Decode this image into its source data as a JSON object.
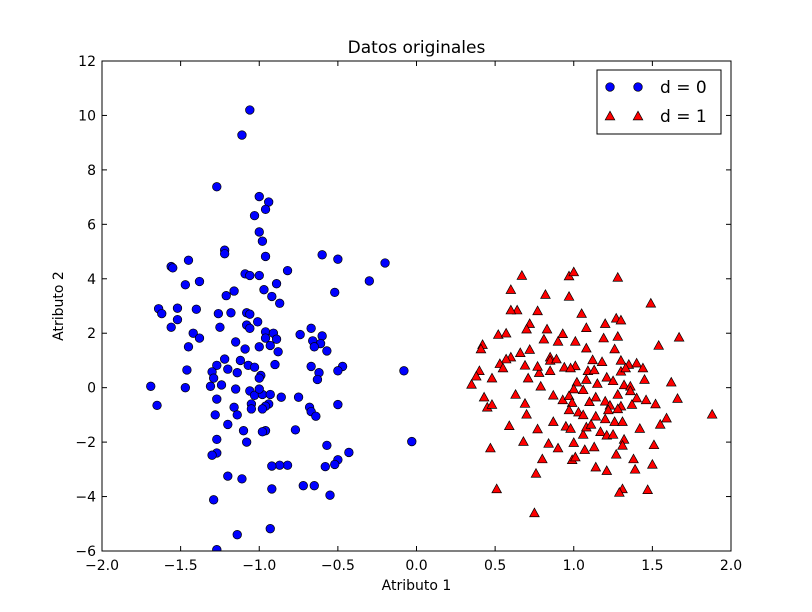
{
  "chart_data": {
    "type": "scatter",
    "title": "Datos originales",
    "xlabel": "Atributo 1",
    "ylabel": "Atributo 2",
    "xlim": [
      -2.0,
      2.0
    ],
    "ylim": [
      -6,
      12
    ],
    "xticks": [
      "−2.0",
      "−1.5",
      "−1.0",
      "−0.5",
      "0.0",
      "0.5",
      "1.0",
      "1.5",
      "2.0"
    ],
    "yticks": [
      "−6",
      "−4",
      "−2",
      "0",
      "2",
      "4",
      "6",
      "8",
      "10",
      "12"
    ],
    "grid": false,
    "legend_position": "top-right",
    "series": [
      {
        "name": "d = 0",
        "marker": "circle",
        "color": "#0000ff",
        "points": [
          [
            -1.06,
            10.2
          ],
          [
            -1.11,
            9.28
          ],
          [
            -1.27,
            7.38
          ],
          [
            -1.0,
            7.02
          ],
          [
            -0.94,
            6.82
          ],
          [
            -0.96,
            6.55
          ],
          [
            -1.03,
            6.32
          ],
          [
            -1.0,
            5.72
          ],
          [
            -0.98,
            5.38
          ],
          [
            -1.22,
            5.05
          ],
          [
            -1.22,
            4.92
          ],
          [
            -0.6,
            4.88
          ],
          [
            -0.96,
            4.82
          ],
          [
            -0.5,
            4.72
          ],
          [
            -1.45,
            4.68
          ],
          [
            -0.2,
            4.58
          ],
          [
            -1.56,
            4.45
          ],
          [
            -1.55,
            4.4
          ],
          [
            -0.82,
            4.3
          ],
          [
            -1.09,
            4.18
          ],
          [
            -1.06,
            4.12
          ],
          [
            -1.0,
            4.12
          ],
          [
            -1.47,
            3.78
          ],
          [
            -1.38,
            3.9
          ],
          [
            -0.3,
            3.92
          ],
          [
            -0.89,
            3.82
          ],
          [
            -0.97,
            3.6
          ],
          [
            -1.16,
            3.55
          ],
          [
            -1.21,
            3.38
          ],
          [
            -0.92,
            3.35
          ],
          [
            -0.52,
            3.5
          ],
          [
            -0.87,
            3.1
          ],
          [
            -1.4,
            2.88
          ],
          [
            -1.64,
            2.9
          ],
          [
            -1.62,
            2.72
          ],
          [
            -1.18,
            2.75
          ],
          [
            -1.08,
            2.75
          ],
          [
            -1.06,
            2.7
          ],
          [
            -1.26,
            2.72
          ],
          [
            -1.52,
            2.92
          ],
          [
            -1.52,
            2.5
          ],
          [
            -1.42,
            2.0
          ],
          [
            -1.56,
            2.22
          ],
          [
            -1.38,
            1.82
          ],
          [
            -1.25,
            2.22
          ],
          [
            -1.01,
            2.42
          ],
          [
            -1.08,
            2.3
          ],
          [
            -0.96,
            2.05
          ],
          [
            -0.91,
            2.0
          ],
          [
            -1.06,
            2.18
          ],
          [
            -0.96,
            1.82
          ],
          [
            -0.89,
            1.78
          ],
          [
            -0.67,
            2.18
          ],
          [
            -0.6,
            1.9
          ],
          [
            -0.74,
            1.95
          ],
          [
            -0.66,
            1.72
          ],
          [
            -0.61,
            1.62
          ],
          [
            -0.65,
            1.5
          ],
          [
            -0.88,
            1.32
          ],
          [
            -0.93,
            1.55
          ],
          [
            -1.0,
            1.5
          ],
          [
            -1.09,
            1.42
          ],
          [
            -1.15,
            1.68
          ],
          [
            -1.45,
            1.5
          ],
          [
            -1.22,
            1.05
          ],
          [
            -1.12,
            1.0
          ],
          [
            -1.07,
            0.82
          ],
          [
            -1.03,
            0.75
          ],
          [
            -0.9,
            0.85
          ],
          [
            -0.67,
            0.78
          ],
          [
            -0.47,
            0.78
          ],
          [
            -0.5,
            0.62
          ],
          [
            -0.57,
            1.35
          ],
          [
            -0.62,
            0.55
          ],
          [
            -0.63,
            0.3
          ],
          [
            -0.08,
            0.62
          ],
          [
            -1.46,
            0.65
          ],
          [
            -1.27,
            0.82
          ],
          [
            -1.3,
            0.58
          ],
          [
            -1.2,
            0.68
          ],
          [
            -1.14,
            0.55
          ],
          [
            -0.99,
            0.45
          ],
          [
            -1.0,
            0.35
          ],
          [
            -1.29,
            0.35
          ],
          [
            -1.31,
            0.05
          ],
          [
            -1.24,
            0.1
          ],
          [
            -1.47,
            0.0
          ],
          [
            -1.69,
            0.05
          ],
          [
            -1.15,
            -0.05
          ],
          [
            -1.06,
            -0.12
          ],
          [
            -1.03,
            -0.28
          ],
          [
            -0.98,
            -0.25
          ],
          [
            -1.0,
            -0.05
          ],
          [
            -0.93,
            -0.25
          ],
          [
            -0.86,
            -0.35
          ],
          [
            -0.75,
            -0.35
          ],
          [
            -0.94,
            -0.6
          ],
          [
            -1.05,
            -0.6
          ],
          [
            -0.96,
            -0.68
          ],
          [
            -0.98,
            -0.78
          ],
          [
            -1.05,
            -0.78
          ],
          [
            -1.27,
            -0.42
          ],
          [
            -1.28,
            -1.0
          ],
          [
            -1.16,
            -0.72
          ],
          [
            -0.68,
            -0.72
          ],
          [
            -0.5,
            -0.62
          ],
          [
            -0.67,
            -0.88
          ],
          [
            -0.64,
            -1.05
          ],
          [
            -1.65,
            -0.65
          ],
          [
            -1.14,
            -1.0
          ],
          [
            -1.2,
            -1.35
          ],
          [
            -1.1,
            -1.58
          ],
          [
            -0.96,
            -1.58
          ],
          [
            -0.98,
            -1.62
          ],
          [
            -0.77,
            -1.55
          ],
          [
            -1.27,
            -1.9
          ],
          [
            -1.08,
            -2.0
          ],
          [
            -0.57,
            -2.12
          ],
          [
            -0.03,
            -1.98
          ],
          [
            -1.27,
            -2.4
          ],
          [
            -1.3,
            -2.48
          ],
          [
            -0.43,
            -2.38
          ],
          [
            -0.5,
            -2.65
          ],
          [
            -0.52,
            -2.82
          ],
          [
            -0.58,
            -2.9
          ],
          [
            -0.82,
            -2.85
          ],
          [
            -0.87,
            -2.85
          ],
          [
            -0.92,
            -2.88
          ],
          [
            -1.2,
            -3.25
          ],
          [
            -1.11,
            -3.35
          ],
          [
            -0.72,
            -3.6
          ],
          [
            -0.65,
            -3.6
          ],
          [
            -0.92,
            -3.72
          ],
          [
            -0.55,
            -3.95
          ],
          [
            -1.29,
            -4.12
          ],
          [
            -0.93,
            -5.18
          ],
          [
            -1.14,
            -5.4
          ],
          [
            -1.27,
            -5.95
          ]
        ]
      },
      {
        "name": "d = 1",
        "marker": "triangle",
        "color": "#ff0000",
        "points": [
          [
            0.67,
            4.12
          ],
          [
            0.97,
            4.1
          ],
          [
            1.0,
            4.25
          ],
          [
            1.28,
            4.05
          ],
          [
            0.6,
            3.6
          ],
          [
            0.82,
            3.42
          ],
          [
            0.97,
            3.35
          ],
          [
            1.49,
            3.1
          ],
          [
            0.64,
            2.85
          ],
          [
            0.6,
            2.85
          ],
          [
            0.77,
            2.82
          ],
          [
            1.05,
            2.72
          ],
          [
            1.27,
            2.55
          ],
          [
            1.3,
            2.48
          ],
          [
            0.72,
            2.35
          ],
          [
            0.7,
            2.15
          ],
          [
            0.83,
            2.15
          ],
          [
            1.08,
            2.2
          ],
          [
            0.93,
            1.98
          ],
          [
            0.52,
            1.95
          ],
          [
            0.57,
            2.0
          ],
          [
            1.2,
            2.35
          ],
          [
            0.81,
            1.78
          ],
          [
            0.9,
            1.7
          ],
          [
            1.01,
            1.7
          ],
          [
            1.19,
            1.82
          ],
          [
            1.28,
            1.88
          ],
          [
            1.67,
            1.85
          ],
          [
            0.42,
            1.58
          ],
          [
            0.72,
            1.4
          ],
          [
            1.08,
            1.45
          ],
          [
            1.26,
            1.42
          ],
          [
            1.54,
            1.55
          ],
          [
            0.41,
            1.42
          ],
          [
            0.66,
            1.28
          ],
          [
            0.6,
            1.12
          ],
          [
            0.57,
            1.05
          ],
          [
            0.53,
            0.88
          ],
          [
            0.55,
            0.72
          ],
          [
            0.85,
            1.12
          ],
          [
            0.85,
            1.0
          ],
          [
            0.89,
            1.05
          ],
          [
            1.12,
            1.02
          ],
          [
            1.18,
            0.95
          ],
          [
            1.3,
            1.0
          ],
          [
            1.35,
            0.85
          ],
          [
            1.4,
            0.9
          ],
          [
            1.44,
            0.72
          ],
          [
            1.01,
            0.8
          ],
          [
            0.94,
            0.75
          ],
          [
            0.98,
            0.72
          ],
          [
            0.85,
            0.62
          ],
          [
            0.78,
            0.55
          ],
          [
            0.77,
            0.78
          ],
          [
            0.69,
            0.82
          ],
          [
            1.09,
            0.62
          ],
          [
            1.13,
            0.65
          ],
          [
            1.21,
            0.38
          ],
          [
            1.3,
            0.6
          ],
          [
            1.33,
            0.72
          ],
          [
            0.4,
            0.62
          ],
          [
            0.38,
            0.42
          ],
          [
            0.48,
            0.35
          ],
          [
            0.35,
            0.12
          ],
          [
            0.63,
            -0.25
          ],
          [
            0.71,
            0.35
          ],
          [
            0.79,
            0.05
          ],
          [
            1.02,
            0.2
          ],
          [
            1.08,
            0.3
          ],
          [
            1.15,
            0.15
          ],
          [
            1.25,
            0.25
          ],
          [
            1.32,
            0.1
          ],
          [
            1.36,
            0.05
          ],
          [
            1.45,
            0.3
          ],
          [
            1.62,
            0.2
          ],
          [
            1.0,
            -0.05
          ],
          [
            1.06,
            -0.08
          ],
          [
            1.14,
            -0.35
          ],
          [
            1.28,
            -0.25
          ],
          [
            1.36,
            -0.12
          ],
          [
            1.4,
            -0.38
          ],
          [
            1.46,
            -0.45
          ],
          [
            1.52,
            -0.6
          ],
          [
            1.66,
            -0.4
          ],
          [
            0.87,
            -0.28
          ],
          [
            0.93,
            -0.45
          ],
          [
            0.97,
            -0.3
          ],
          [
            0.99,
            -0.55
          ],
          [
            1.1,
            -0.52
          ],
          [
            1.2,
            -0.5
          ],
          [
            1.23,
            -0.65
          ],
          [
            1.3,
            -0.68
          ],
          [
            1.37,
            -0.62
          ],
          [
            0.43,
            -0.35
          ],
          [
            0.45,
            -0.72
          ],
          [
            0.48,
            -0.62
          ],
          [
            0.69,
            -0.58
          ],
          [
            0.7,
            -0.98
          ],
          [
            0.97,
            -0.82
          ],
          [
            1.03,
            -0.9
          ],
          [
            1.06,
            -1.0
          ],
          [
            1.14,
            -1.05
          ],
          [
            1.22,
            -0.82
          ],
          [
            1.28,
            -0.78
          ],
          [
            1.2,
            -1.15
          ],
          [
            1.26,
            -1.25
          ],
          [
            1.31,
            -1.25
          ],
          [
            0.59,
            -1.4
          ],
          [
            0.77,
            -1.52
          ],
          [
            0.87,
            -1.25
          ],
          [
            0.95,
            -1.42
          ],
          [
            0.98,
            -1.5
          ],
          [
            1.06,
            -1.72
          ],
          [
            1.08,
            -1.45
          ],
          [
            1.11,
            -1.35
          ],
          [
            1.17,
            -1.62
          ],
          [
            1.21,
            -1.75
          ],
          [
            1.25,
            -1.72
          ],
          [
            1.32,
            -1.9
          ],
          [
            1.42,
            -1.5
          ],
          [
            1.55,
            -1.35
          ],
          [
            1.59,
            -1.12
          ],
          [
            0.68,
            -1.98
          ],
          [
            1.0,
            -2.02
          ],
          [
            1.13,
            -2.18
          ],
          [
            1.31,
            -2.12
          ],
          [
            1.51,
            -2.1
          ],
          [
            0.47,
            -2.22
          ],
          [
            0.84,
            -2.05
          ],
          [
            0.9,
            -2.22
          ],
          [
            1.07,
            -2.28
          ],
          [
            0.8,
            -2.62
          ],
          [
            0.99,
            -2.65
          ],
          [
            1.01,
            -2.55
          ],
          [
            1.27,
            -2.45
          ],
          [
            1.38,
            -2.62
          ],
          [
            1.5,
            -2.82
          ],
          [
            1.14,
            -2.92
          ],
          [
            1.21,
            -3.05
          ],
          [
            0.76,
            -3.15
          ],
          [
            1.39,
            -3.0
          ],
          [
            1.31,
            -3.72
          ],
          [
            1.29,
            -3.85
          ],
          [
            1.47,
            -3.75
          ],
          [
            0.51,
            -3.72
          ],
          [
            0.75,
            -4.6
          ],
          [
            1.88,
            -0.98
          ]
        ]
      }
    ]
  }
}
